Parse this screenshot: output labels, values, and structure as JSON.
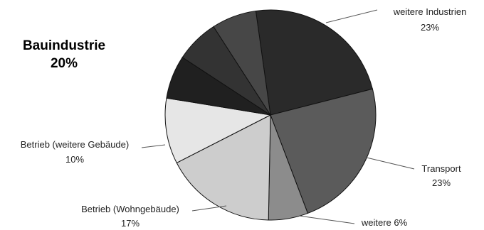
{
  "chart_data": {
    "type": "pie",
    "categories": [
      "weitere Industrien",
      "Transport",
      "weitere",
      "Betrieb (Wohngebäude)",
      "Betrieb (weitere Gebäude)",
      "Bauindustrie"
    ],
    "values": [
      23,
      23,
      6,
      17,
      10,
      20
    ],
    "slice_labels": {
      "weitere_industrien": {
        "name": "weitere Industrien",
        "value": "23%"
      },
      "transport": {
        "name": "Transport",
        "value": "23%"
      },
      "weitere": {
        "name": "weitere 6%"
      },
      "wohngebaeude": {
        "name": "Betrieb (Wohngebäude)",
        "value": "17%"
      },
      "weitere_gebaeude": {
        "name": "Betrieb (weitere Gebäude)",
        "value": "10%"
      }
    },
    "callout": {
      "name": "Bauindustrie",
      "value": "20%"
    },
    "colors": [
      "#2a2a2a",
      "#5b5b5b",
      "#8c8c8c",
      "#cdcdcd",
      "#e6e6e6",
      "#202020",
      "#333333",
      "#474747"
    ]
  }
}
